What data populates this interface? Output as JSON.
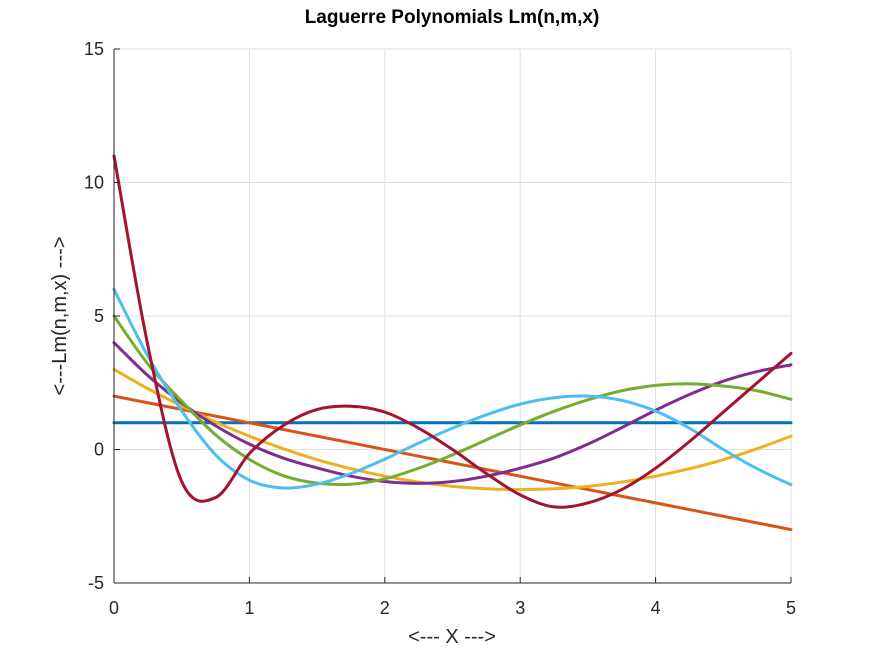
{
  "chart_data": {
    "type": "line",
    "title": "Laguerre Polynomials Lm(n,m,x)",
    "xlabel": "<--- X --->",
    "ylabel": "<---Lm(n,m,x) --->",
    "xlim": [
      0,
      5
    ],
    "ylim": [
      -5,
      15
    ],
    "xticks": [
      0,
      1,
      2,
      3,
      4,
      5
    ],
    "yticks": [
      -5,
      0,
      5,
      10,
      15
    ],
    "xtick_labels": [
      "0",
      "1",
      "2",
      "3",
      "4",
      "5"
    ],
    "ytick_labels": [
      "-5",
      "0",
      "5",
      "10",
      "15"
    ],
    "grid": true,
    "legend": "none",
    "x": [
      0,
      0.25,
      0.5,
      0.75,
      1,
      1.25,
      1.5,
      1.75,
      2,
      2.25,
      2.5,
      2.75,
      3,
      3.25,
      3.5,
      3.75,
      4,
      4.25,
      4.5,
      4.75,
      5
    ],
    "series": [
      {
        "color": "#0072bd",
        "values": [
          1,
          1,
          1,
          1,
          1,
          1,
          1,
          1,
          1,
          1,
          1,
          1,
          1,
          1,
          1,
          1,
          1,
          1,
          1,
          1,
          1
        ]
      },
      {
        "color": "#d95319",
        "values": [
          2,
          1.75,
          1.5,
          1.25,
          1,
          0.75,
          0.5,
          0.25,
          0,
          -0.25,
          -0.5,
          -0.75,
          -1,
          -1.25,
          -1.5,
          -1.75,
          -2,
          -2.25,
          -2.5,
          -2.75,
          -3
        ]
      },
      {
        "color": "#edb120",
        "values": [
          3,
          2.28,
          1.63,
          1.03,
          0.5,
          0.03,
          -0.38,
          -0.72,
          -1,
          -1.22,
          -1.38,
          -1.47,
          -1.5,
          -1.47,
          -1.38,
          -1.22,
          -1,
          -0.72,
          -0.38,
          0.03,
          0.5
        ]
      },
      {
        "color": "#7e2f8e",
        "values": [
          4,
          2.77,
          1.74,
          0.89,
          0.2,
          -0.32,
          -0.69,
          -1.0,
          -1.2,
          -1.27,
          -1.2,
          -1.0,
          -0.7,
          -0.32,
          0.2,
          0.82,
          1.47,
          2.06,
          2.56,
          2.92,
          3.17
        ]
      },
      {
        "color": "#77ac30",
        "values": [
          5,
          3.2,
          1.81,
          0.55,
          -0.37,
          -0.98,
          -1.26,
          -1.3,
          -1.1,
          -0.7,
          -0.2,
          0.36,
          0.92,
          1.43,
          1.86,
          2.2,
          2.4,
          2.46,
          2.38,
          2.2,
          1.88
        ]
      },
      {
        "color": "#4dbeee",
        "values": [
          6,
          3.5,
          1.45,
          -0.2,
          -1.15,
          -1.44,
          -1.3,
          -0.9,
          -0.36,
          0.24,
          0.8,
          1.3,
          1.7,
          1.94,
          2.0,
          1.84,
          1.44,
          0.8,
          0.0,
          -0.72,
          -1.32
        ]
      },
      {
        "color": "#a2142f",
        "values": [
          11,
          3.9,
          -1.2,
          -1.8,
          -0.15,
          0.9,
          1.5,
          1.62,
          1.4,
          0.8,
          0.0,
          -0.9,
          -1.7,
          -2.15,
          -2.0,
          -1.5,
          -0.7,
          0.3,
          1.4,
          2.5,
          3.6
        ]
      }
    ]
  }
}
